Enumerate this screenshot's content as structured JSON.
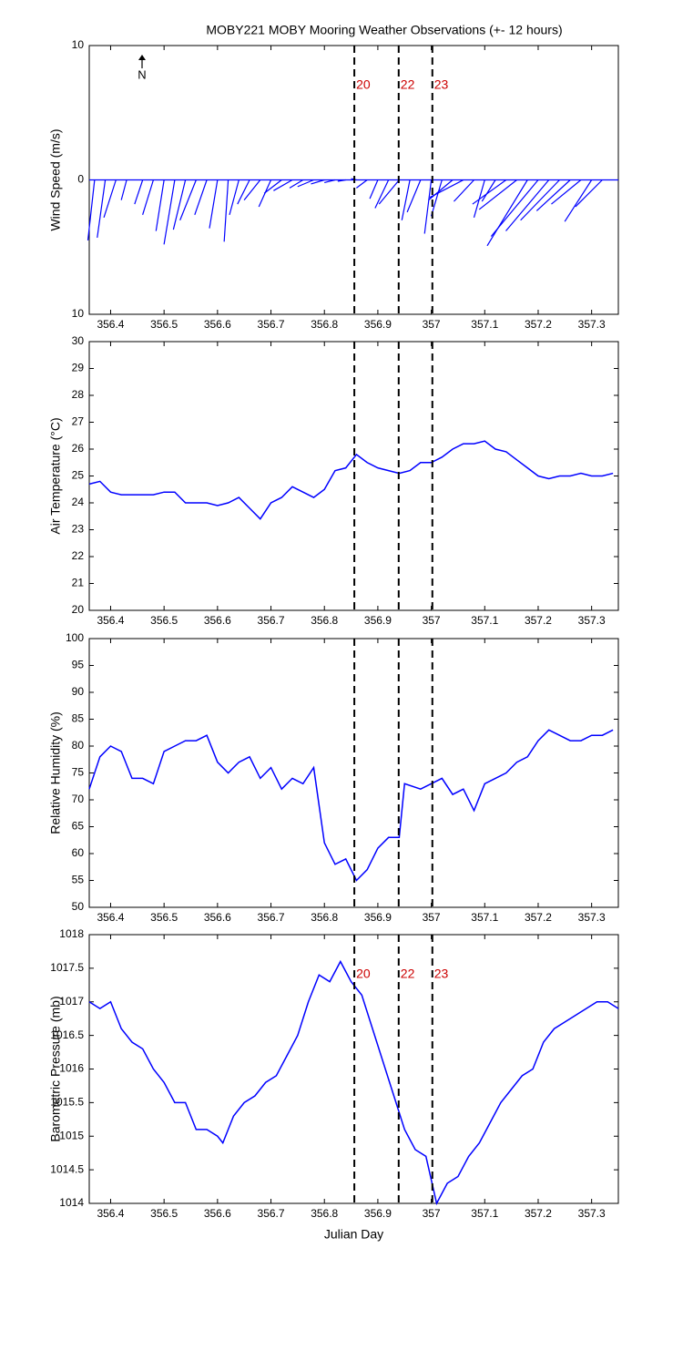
{
  "chart_data": [
    {
      "type": "quiver",
      "title": "MOBY221 MOBY Mooring Weather Observations (+- 12 hours)",
      "y_label": "Wind Speed (m/s)",
      "annotation": "N",
      "xlim": [
        356.36,
        357.35
      ],
      "xticks": [
        356.4,
        356.5,
        356.6,
        356.7,
        356.8,
        356.9,
        357,
        357.1,
        357.2,
        357.3
      ],
      "ylim": [
        -10,
        10
      ],
      "yticks": [
        {
          "value": -10,
          "label": "10"
        },
        0,
        10
      ],
      "color": "#0000ff",
      "x": [
        356.37,
        356.39,
        356.41,
        356.43,
        356.46,
        356.48,
        356.5,
        356.52,
        356.54,
        356.56,
        356.58,
        356.6,
        356.62,
        356.64,
        356.66,
        356.68,
        356.7,
        356.72,
        356.74,
        356.76,
        356.78,
        356.8,
        356.82,
        356.84,
        356.86,
        356.88,
        356.9,
        356.92,
        356.94,
        356.96,
        356.98,
        357,
        357.02,
        357.04,
        357.06,
        357.08,
        357.1,
        357.12,
        357.14,
        357.16,
        357.18,
        357.2,
        357.22,
        357.24,
        357.26,
        357.28,
        357.3,
        357.32
      ],
      "u": [
        -0.5,
        -0.6,
        -0.9,
        -0.4,
        -0.6,
        -0.8,
        -0.6,
        -0.8,
        -0.9,
        -1.2,
        -0.9,
        -0.6,
        -0.3,
        -0.7,
        -0.9,
        -1.2,
        -0.9,
        -1.3,
        -1.4,
        -1,
        -1.2,
        -1,
        -0.8,
        -0.6,
        -0.4,
        -0.8,
        -0.6,
        -1,
        -1.5,
        -0.6,
        -1,
        -0.5,
        -0.8,
        -1.8,
        -2.5,
        -1.5,
        -0.8,
        -1,
        -2.5,
        -2.8,
        -3,
        -3.5,
        -3.2,
        -2.9,
        -2.5,
        -2.2,
        -2,
        -2
      ],
      "v": [
        -4.5,
        -4.3,
        -2.8,
        -1.5,
        -1.8,
        -2.6,
        -3.8,
        -4.8,
        -3.7,
        -3,
        -2.6,
        -3.6,
        -4.6,
        -2.6,
        -1.8,
        -1.5,
        -2,
        -1,
        -0.8,
        -0.6,
        -0.5,
        -0.3,
        -0.2,
        -0.1,
        0.1,
        -0.6,
        -1.4,
        -2.1,
        -1.8,
        -3,
        -2.4,
        -4,
        -2.7,
        -1.5,
        -1.3,
        -1.6,
        -2.8,
        -1.6,
        -1.8,
        -2.2,
        -4.9,
        -4.2,
        -3.8,
        -3,
        -2.3,
        -1.8,
        -3.1,
        -2
      ],
      "vlines": [
        356.856,
        356.939,
        357.002
      ],
      "vline_labels": [
        "20",
        "22",
        "23"
      ],
      "vline_label_color": "#cc0000"
    },
    {
      "type": "line",
      "y_label": "Air Temperature (°C)",
      "xlim": [
        356.36,
        357.35
      ],
      "xticks": [
        356.4,
        356.5,
        356.6,
        356.7,
        356.8,
        356.9,
        357,
        357.1,
        357.2,
        357.3
      ],
      "ylim": [
        20,
        30
      ],
      "yticks": [
        20,
        21,
        22,
        23,
        24,
        25,
        26,
        27,
        28,
        29,
        30
      ],
      "color": "#0000ff",
      "x": [
        356.36,
        356.38,
        356.4,
        356.42,
        356.44,
        356.46,
        356.48,
        356.5,
        356.52,
        356.54,
        356.56,
        356.58,
        356.6,
        356.62,
        356.64,
        356.66,
        356.68,
        356.7,
        356.72,
        356.74,
        356.76,
        356.78,
        356.8,
        356.82,
        356.84,
        356.86,
        356.88,
        356.9,
        356.92,
        356.94,
        356.96,
        356.98,
        357,
        357.02,
        357.04,
        357.06,
        357.08,
        357.1,
        357.12,
        357.14,
        357.16,
        357.18,
        357.2,
        357.22,
        357.24,
        357.26,
        357.28,
        357.3,
        357.32,
        357.34
      ],
      "values": [
        24.7,
        24.8,
        24.4,
        24.3,
        24.3,
        24.3,
        24.3,
        24.4,
        24.4,
        24,
        24,
        24,
        23.9,
        24,
        24.2,
        23.8,
        23.4,
        24,
        24.2,
        24.6,
        24.4,
        24.2,
        24.5,
        25.2,
        25.3,
        25.8,
        25.5,
        25.3,
        25.2,
        25.1,
        25.2,
        25.5,
        25.5,
        25.7,
        26,
        26.2,
        26.2,
        26.3,
        26,
        25.9,
        25.6,
        25.3,
        25,
        24.9,
        25,
        25,
        25.1,
        25,
        25,
        25.1
      ],
      "vlines": [
        356.856,
        356.939,
        357.002
      ]
    },
    {
      "type": "line",
      "y_label": "Relative Humidity (%)",
      "xlim": [
        356.36,
        357.35
      ],
      "xticks": [
        356.4,
        356.5,
        356.6,
        356.7,
        356.8,
        356.9,
        357,
        357.1,
        357.2,
        357.3
      ],
      "ylim": [
        50,
        100
      ],
      "yticks": [
        50,
        55,
        60,
        65,
        70,
        75,
        80,
        85,
        90,
        95,
        100
      ],
      "color": "#0000ff",
      "x": [
        356.36,
        356.38,
        356.4,
        356.42,
        356.44,
        356.46,
        356.48,
        356.5,
        356.52,
        356.54,
        356.56,
        356.58,
        356.6,
        356.62,
        356.64,
        356.66,
        356.68,
        356.7,
        356.72,
        356.74,
        356.76,
        356.78,
        356.8,
        356.82,
        356.84,
        356.86,
        356.88,
        356.9,
        356.92,
        356.94,
        356.95,
        356.98,
        357,
        357.02,
        357.04,
        357.06,
        357.08,
        357.1,
        357.12,
        357.14,
        357.16,
        357.18,
        357.2,
        357.22,
        357.24,
        357.26,
        357.28,
        357.3,
        357.32,
        357.34
      ],
      "values": [
        72,
        78,
        80,
        79,
        74,
        74,
        73,
        79,
        80,
        81,
        81,
        82,
        77,
        75,
        77,
        78,
        74,
        76,
        72,
        74,
        73,
        76,
        62,
        58,
        59,
        55,
        57,
        61,
        63,
        63,
        73,
        72,
        73,
        74,
        71,
        72,
        68,
        73,
        74,
        75,
        77,
        78,
        81,
        83,
        82,
        81,
        81,
        82,
        82,
        83
      ],
      "vlines": [
        356.856,
        356.939,
        357.002
      ]
    },
    {
      "type": "line",
      "y_label": "Barometric Pressure (mb)",
      "x_label": "Julian Day",
      "xlim": [
        356.36,
        357.35
      ],
      "xticks": [
        356.4,
        356.5,
        356.6,
        356.7,
        356.8,
        356.9,
        357,
        357.1,
        357.2,
        357.3
      ],
      "ylim": [
        1014,
        1018
      ],
      "yticks": [
        1014,
        1014.5,
        1015,
        1015.5,
        1016,
        1016.5,
        1017,
        1017.5,
        1018
      ],
      "color": "#0000ff",
      "x": [
        356.36,
        356.38,
        356.4,
        356.42,
        356.44,
        356.46,
        356.48,
        356.5,
        356.52,
        356.54,
        356.56,
        356.58,
        356.6,
        356.61,
        356.63,
        356.65,
        356.67,
        356.69,
        356.71,
        356.73,
        356.75,
        356.77,
        356.79,
        356.81,
        356.83,
        356.85,
        356.87,
        356.89,
        356.91,
        356.93,
        356.95,
        356.97,
        356.99,
        357.01,
        357.03,
        357.05,
        357.07,
        357.09,
        357.11,
        357.13,
        357.15,
        357.17,
        357.19,
        357.21,
        357.23,
        357.25,
        357.27,
        357.29,
        357.31,
        357.33,
        357.35
      ],
      "values": [
        1017,
        1016.9,
        1017,
        1016.6,
        1016.4,
        1016.3,
        1016,
        1015.8,
        1015.5,
        1015.5,
        1015.1,
        1015.1,
        1015,
        1014.9,
        1015.3,
        1015.5,
        1015.6,
        1015.8,
        1015.9,
        1016.2,
        1016.5,
        1017,
        1017.4,
        1017.3,
        1017.6,
        1017.3,
        1017.1,
        1016.6,
        1016.1,
        1015.6,
        1015.1,
        1014.8,
        1014.7,
        1014,
        1014.3,
        1014.4,
        1014.7,
        1014.9,
        1015.2,
        1015.5,
        1015.7,
        1015.9,
        1016,
        1016.4,
        1016.6,
        1016.7,
        1016.8,
        1016.9,
        1017,
        1017,
        1016.9
      ],
      "vlines": [
        356.856,
        356.939,
        357.002
      ],
      "vline_labels": [
        "20",
        "22",
        "23"
      ],
      "vline_label_color": "#cc0000"
    }
  ]
}
